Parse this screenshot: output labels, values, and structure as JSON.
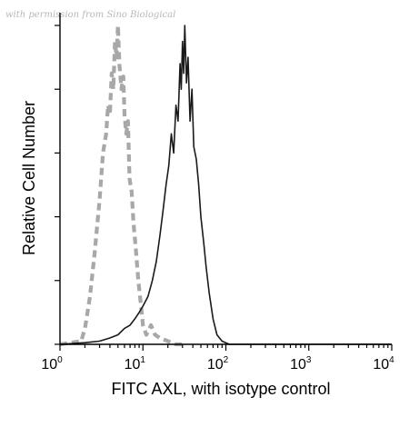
{
  "watermark": "with permission from Sino Biological",
  "chart_data": {
    "type": "line",
    "xlabel": "FITC AXL, with isotype control",
    "ylabel": "Relative Cell Number",
    "xscale": "log",
    "xlim": [
      1,
      10000
    ],
    "ylim": [
      0,
      1
    ],
    "x_ticks": [
      {
        "value": 1,
        "base": "10",
        "exp": "0"
      },
      {
        "value": 10,
        "base": "10",
        "exp": "1"
      },
      {
        "value": 100,
        "base": "10",
        "exp": "2"
      },
      {
        "value": 1000,
        "base": "10",
        "exp": "3"
      },
      {
        "value": 10000,
        "base": "10",
        "exp": "4"
      }
    ],
    "y_tick_count": 6,
    "grid": false,
    "series": [
      {
        "key": "isotype",
        "style": "dashed",
        "color": "#a8a8a8",
        "points": [
          [
            1.0,
            0.0
          ],
          [
            1.8,
            0.01
          ],
          [
            2.0,
            0.05
          ],
          [
            2.3,
            0.15
          ],
          [
            2.6,
            0.28
          ],
          [
            3.0,
            0.45
          ],
          [
            3.3,
            0.6
          ],
          [
            3.6,
            0.66
          ],
          [
            3.8,
            0.75
          ],
          [
            4.0,
            0.72
          ],
          [
            4.2,
            0.85
          ],
          [
            4.4,
            0.8
          ],
          [
            4.6,
            0.95
          ],
          [
            4.8,
            0.9
          ],
          [
            5.0,
            1.0
          ],
          [
            5.2,
            0.88
          ],
          [
            5.5,
            0.8
          ],
          [
            5.8,
            0.84
          ],
          [
            6.0,
            0.72
          ],
          [
            6.3,
            0.66
          ],
          [
            6.6,
            0.7
          ],
          [
            6.9,
            0.52
          ],
          [
            7.3,
            0.48
          ],
          [
            7.7,
            0.38
          ],
          [
            8.2,
            0.3
          ],
          [
            8.8,
            0.2
          ],
          [
            9.5,
            0.12
          ],
          [
            10.0,
            0.06
          ],
          [
            11.0,
            0.03
          ],
          [
            12.5,
            0.06
          ],
          [
            14.0,
            0.03
          ],
          [
            16.0,
            0.02
          ],
          [
            20.0,
            0.01
          ],
          [
            25.0,
            0.0
          ],
          [
            30.0,
            0.0
          ]
        ]
      },
      {
        "key": "axl",
        "style": "solid",
        "color": "#1a1a1a",
        "points": [
          [
            1.0,
            0.0
          ],
          [
            2.0,
            0.005
          ],
          [
            3.0,
            0.01
          ],
          [
            4.0,
            0.02
          ],
          [
            5.0,
            0.03
          ],
          [
            6.0,
            0.05
          ],
          [
            7.0,
            0.06
          ],
          [
            8.0,
            0.08
          ],
          [
            9.0,
            0.1
          ],
          [
            10.0,
            0.12
          ],
          [
            11.5,
            0.15
          ],
          [
            13.0,
            0.2
          ],
          [
            14.5,
            0.26
          ],
          [
            16.0,
            0.34
          ],
          [
            17.5,
            0.42
          ],
          [
            19.0,
            0.5
          ],
          [
            20.5,
            0.56
          ],
          [
            22.0,
            0.66
          ],
          [
            23.5,
            0.6
          ],
          [
            25.0,
            0.75
          ],
          [
            26.5,
            0.7
          ],
          [
            28.0,
            0.88
          ],
          [
            29.0,
            0.8
          ],
          [
            30.0,
            0.95
          ],
          [
            31.0,
            0.85
          ],
          [
            32.0,
            1.0
          ],
          [
            33.5,
            0.82
          ],
          [
            35.0,
            0.9
          ],
          [
            37.0,
            0.7
          ],
          [
            39.0,
            0.8
          ],
          [
            41.0,
            0.62
          ],
          [
            44.0,
            0.58
          ],
          [
            47.0,
            0.5
          ],
          [
            50.0,
            0.4
          ],
          [
            54.0,
            0.32
          ],
          [
            58.0,
            0.24
          ],
          [
            63.0,
            0.16
          ],
          [
            70.0,
            0.08
          ],
          [
            78.0,
            0.03
          ],
          [
            90.0,
            0.01
          ],
          [
            110.0,
            0.0
          ],
          [
            200.0,
            0.0
          ],
          [
            1000.0,
            0.0
          ],
          [
            10000.0,
            0.0
          ]
        ]
      }
    ]
  }
}
